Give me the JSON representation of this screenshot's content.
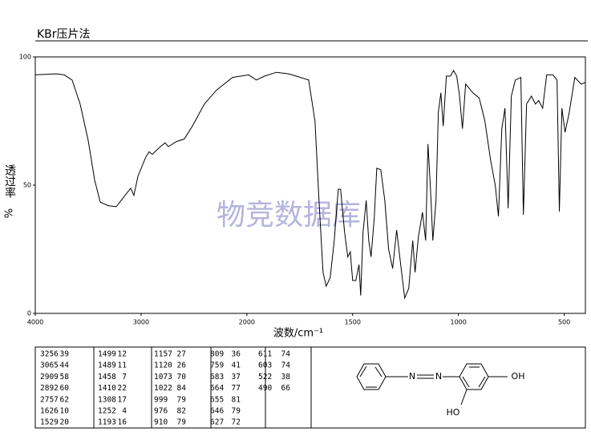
{
  "chart_data": {
    "type": "line",
    "title": "KBr压片法",
    "ylabel": "透过率",
    "yunit": "%",
    "xlabel": "波数/cm⁻¹",
    "watermark": "物竞数据库",
    "xlim": [
      4000,
      400
    ],
    "xticks": [
      4000,
      3000,
      2000,
      1500,
      1000,
      500
    ],
    "ylim": [
      0,
      100
    ],
    "yticks": [
      0,
      50,
      100
    ],
    "color": "#000000",
    "x": [
      4000,
      3803,
      3727,
      3652,
      3576,
      3500,
      3439,
      3386,
      3311,
      3235,
      3159,
      3098,
      3068,
      3030,
      2955,
      2924,
      2894,
      2818,
      2773,
      2742,
      2667,
      2591,
      2515,
      2402,
      2288,
      2136,
      1992,
      1955,
      1917,
      1860,
      1803,
      1746,
      1708,
      1678,
      1659,
      1640,
      1625,
      1606,
      1587,
      1568,
      1557,
      1538,
      1523,
      1511,
      1500,
      1485,
      1470,
      1462,
      1451,
      1436,
      1424,
      1413,
      1398,
      1386,
      1367,
      1348,
      1330,
      1311,
      1292,
      1273,
      1254,
      1235,
      1216,
      1205,
      1189,
      1170,
      1155,
      1144,
      1133,
      1121,
      1106,
      1095,
      1083,
      1072,
      1057,
      1038,
      1023,
      1008,
      996,
      981,
      966,
      932,
      902,
      875,
      848,
      826,
      811,
      795,
      780,
      765,
      750,
      731,
      705,
      693,
      678,
      655,
      636,
      621,
      602,
      583,
      553,
      534,
      523,
      511,
      496,
      477,
      450,
      420,
      400
    ],
    "values": [
      93,
      93.4,
      93,
      91,
      81.6,
      67.5,
      52,
      43.4,
      42,
      41.6,
      45.6,
      48.8,
      46,
      53.4,
      61,
      63,
      62,
      65,
      66.5,
      65,
      67,
      68,
      73,
      81.6,
      87,
      92,
      93,
      91,
      92.5,
      94,
      93.4,
      92,
      91,
      75,
      44,
      16,
      10.6,
      14,
      28.4,
      48.4,
      48.4,
      31.6,
      22,
      24,
      12.8,
      12.8,
      19,
      7,
      31.6,
      44,
      28.4,
      22,
      37,
      56.6,
      56,
      44,
      25,
      17.5,
      32.5,
      19,
      6,
      9.7,
      28.4,
      16,
      30,
      39.4,
      28.4,
      66,
      50,
      28.4,
      44,
      78.4,
      86,
      73,
      92.5,
      92.5,
      94.7,
      92.5,
      85.6,
      72,
      89.4,
      86,
      84,
      75,
      59.7,
      50,
      37.8,
      72,
      80,
      41,
      84.7,
      91,
      92,
      38.4,
      81.6,
      84.7,
      81.6,
      83,
      80,
      93,
      93,
      91,
      39.7,
      80,
      70.6,
      78,
      92,
      89.4,
      90
    ]
  },
  "peak_table": {
    "columns": [
      [
        [
          3256,
          39
        ],
        [
          3065,
          44
        ],
        [
          2909,
          58
        ],
        [
          2892,
          60
        ],
        [
          2757,
          62
        ],
        [
          1626,
          10
        ],
        [
          1529,
          20
        ]
      ],
      [
        [
          1499,
          12
        ],
        [
          1489,
          11
        ],
        [
          1458,
          7
        ],
        [
          1410,
          22
        ],
        [
          1308,
          17
        ],
        [
          1252,
          4
        ],
        [
          1193,
          16
        ]
      ],
      [
        [
          1157,
          27
        ],
        [
          1120,
          26
        ],
        [
          1073,
          70
        ],
        [
          1022,
          84
        ],
        [
          999,
          79
        ],
        [
          976,
          82
        ],
        [
          910,
          79
        ]
      ],
      [
        [
          809,
          36
        ],
        [
          759,
          41
        ],
        [
          683,
          37
        ],
        [
          664,
          77
        ],
        [
          655,
          81
        ],
        [
          646,
          79
        ],
        [
          627,
          72
        ]
      ],
      [
        [
          611,
          74
        ],
        [
          603,
          74
        ],
        [
          522,
          38
        ],
        [
          490,
          66
        ]
      ]
    ]
  },
  "structure": {
    "labels": [
      "N",
      "N",
      "OH",
      "HO"
    ]
  }
}
